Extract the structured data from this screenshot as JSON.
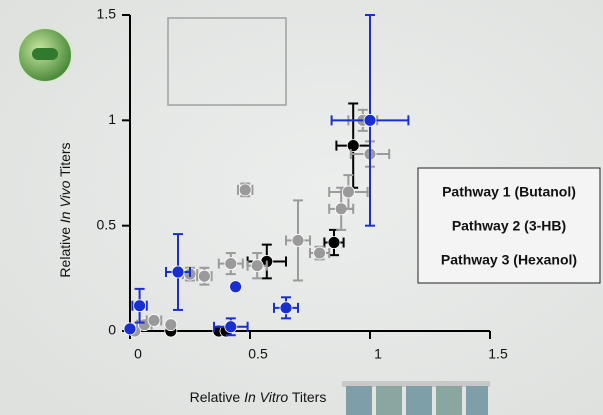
{
  "chart_data": {
    "type": "scatter",
    "x_label": [
      "Relative ",
      "In Vitro",
      " Titers"
    ],
    "y_label": [
      "Relative ",
      "In Vivo",
      " Titers"
    ],
    "xlim": [
      0,
      1.5
    ],
    "xticks": [
      0,
      0.5,
      1,
      1.5
    ],
    "ylim": [
      0,
      1.5
    ],
    "yticks": [
      0,
      0.5,
      1,
      1.5
    ],
    "legend": "right",
    "series": [
      {
        "name": "Pathway 1 (Butanol)",
        "color": "#000000",
        "x": [
          0.17,
          0.37,
          0.4,
          0.57,
          0.85,
          0.93
        ],
        "values": [
          0,
          0,
          0,
          0.33,
          0.42,
          0.88
        ],
        "x_err": [
          null,
          null,
          null,
          0.08,
          0.04,
          0.07
        ],
        "y_err": [
          null,
          null,
          null,
          0.08,
          0.06,
          0.2
        ]
      },
      {
        "name": "Pathway 2 (3-HB)",
        "color": "#9a9a9a",
        "x": [
          0.02,
          0.06,
          0.1,
          0.17,
          0.25,
          0.31,
          0.42,
          0.48,
          0.53,
          0.7,
          0.79,
          0.88,
          0.91,
          0.97,
          1.0
        ],
        "values": [
          0,
          0.03,
          0.05,
          0.03,
          0.27,
          0.26,
          0.32,
          0.67,
          0.31,
          0.43,
          0.37,
          0.58,
          0.66,
          1.0,
          0.84
        ],
        "x_err": [
          null,
          0.03,
          0.03,
          null,
          0.03,
          0.03,
          0.05,
          0.03,
          0.04,
          0.05,
          0.04,
          0.05,
          0.08,
          0.06,
          0.08
        ],
        "y_err": [
          null,
          null,
          null,
          null,
          0.03,
          0.04,
          0.05,
          0.03,
          0.06,
          0.19,
          0.03,
          0.1,
          0.08,
          0.05,
          0.06
        ]
      },
      {
        "name": "Pathway 3 (Hexanol)",
        "color": "#1a2fd0",
        "x": [
          0,
          0.04,
          0.2,
          0.44,
          0.42,
          0.65,
          1.0
        ],
        "values": [
          0.01,
          0.12,
          0.28,
          0.21,
          0.02,
          0.11,
          1.0
        ],
        "x_err": [
          null,
          0.03,
          0.05,
          null,
          0.07,
          0.05,
          0.16
        ],
        "y_err": [
          null,
          0.08,
          0.18,
          null,
          0.04,
          0.05,
          0.5
        ]
      }
    ]
  }
}
